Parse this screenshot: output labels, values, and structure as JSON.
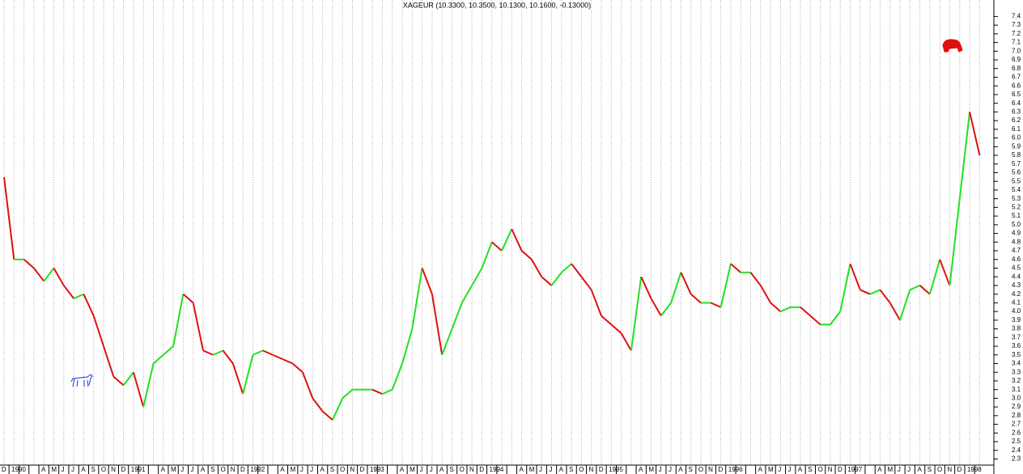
{
  "chart_data": {
    "type": "line",
    "title": "XAGEUR (10.3300, 10.3500, 10.1300, 10.1600, -0.13000)",
    "categories": [
      "D",
      "1990",
      null,
      null,
      "A",
      "M",
      "J",
      "J",
      "A",
      "S",
      "O",
      "N",
      "D",
      "1991",
      null,
      null,
      "A",
      "M",
      "J",
      "J",
      "A",
      "S",
      "O",
      "N",
      "D",
      "1992",
      null,
      null,
      "A",
      "M",
      "J",
      "J",
      "A",
      "S",
      "O",
      "N",
      "D",
      "1993",
      null,
      null,
      "A",
      "M",
      "J",
      "J",
      "A",
      "S",
      "O",
      "N",
      "D",
      "1994",
      null,
      null,
      "A",
      "M",
      "J",
      "J",
      "A",
      "S",
      "O",
      "N",
      "D",
      "1995",
      null,
      null,
      "A",
      "M",
      "J",
      "J",
      "A",
      "S",
      "O",
      "N",
      "D",
      "1996",
      null,
      null,
      "A",
      "M",
      "J",
      "J",
      "A",
      "S",
      "O",
      "N",
      "D",
      "1997",
      null,
      null,
      "A",
      "M",
      "J",
      "J",
      "A",
      "S",
      "O",
      "N",
      "D",
      "1998",
      null
    ],
    "values": [
      5.55,
      4.6,
      4.6,
      4.5,
      4.35,
      4.5,
      4.3,
      4.15,
      4.2,
      3.95,
      3.6,
      3.25,
      3.15,
      3.3,
      2.9,
      3.4,
      3.5,
      3.6,
      4.2,
      4.1,
      3.55,
      3.5,
      3.55,
      3.4,
      3.05,
      3.5,
      3.55,
      3.5,
      3.45,
      3.4,
      3.3,
      3.0,
      2.85,
      2.75,
      3.0,
      3.1,
      3.1,
      3.1,
      3.05,
      3.1,
      3.4,
      3.8,
      4.5,
      4.2,
      3.5,
      3.8,
      4.1,
      4.3,
      4.5,
      4.8,
      4.7,
      4.95,
      4.7,
      4.6,
      4.4,
      4.3,
      4.45,
      4.55,
      4.4,
      4.25,
      3.95,
      3.85,
      3.75,
      3.55,
      4.4,
      4.15,
      3.95,
      4.1,
      4.45,
      4.2,
      4.1,
      4.1,
      4.05,
      4.55,
      4.45,
      4.45,
      4.3,
      4.1,
      4.0,
      4.05,
      4.05,
      3.95,
      3.85,
      3.85,
      4.0,
      4.55,
      4.25,
      4.2,
      4.25,
      4.1,
      3.9,
      4.25,
      4.3,
      4.2,
      4.6,
      4.3,
      5.3,
      6.3,
      5.8
    ],
    "up_color": "#22e022",
    "down_color": "#e01010",
    "ylim": [
      2.23,
      7.59
    ],
    "yticks": [
      2.3,
      2.4,
      2.5,
      2.6,
      2.7,
      2.8,
      2.9,
      {
        "value": 3,
        "label": "3.0"
      },
      3.1,
      3.2,
      3.3,
      3.4,
      3.5,
      3.6,
      3.7,
      3.8,
      3.9,
      {
        "value": 4,
        "label": "4.0"
      },
      4.1,
      4.2,
      4.3,
      4.4,
      4.5,
      4.6,
      4.7,
      4.8,
      4.9,
      {
        "value": 5,
        "label": "5.0"
      },
      5.1,
      5.2,
      5.3,
      5.4,
      5.5,
      5.6,
      5.7,
      5.8,
      5.9,
      {
        "value": 6,
        "label": "6.0"
      },
      6.1,
      6.2,
      6.3,
      6.4,
      6.5,
      6.6,
      6.7,
      6.8,
      6.9,
      {
        "value": 7,
        "label": "7.0"
      },
      7.1,
      7.2,
      7.3,
      7.4
    ]
  }
}
